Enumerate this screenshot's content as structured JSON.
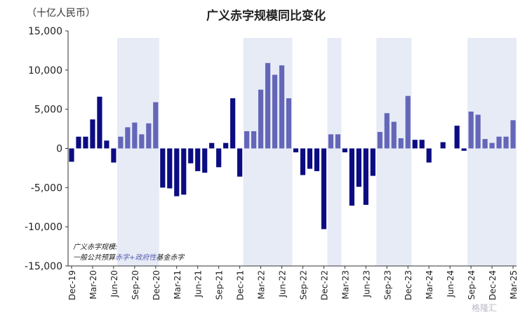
{
  "chart_data": {
    "type": "bar",
    "title": "广义赤字规模同比变化",
    "unit_label": "（十亿人民币）",
    "ylim": [
      -15000,
      15000
    ],
    "yticks": [
      15000,
      10000,
      5000,
      0,
      -5000,
      -10000,
      -15000
    ],
    "ytick_labels": [
      "15,000",
      "10,000",
      "5,000",
      "0",
      "-5,000",
      "-10,000",
      "-15,000"
    ],
    "categories": [
      "2019-12",
      "2020-01",
      "2020-02",
      "2020-03",
      "2020-04",
      "2020-05",
      "2020-06",
      "2020-07",
      "2020-08",
      "2020-09",
      "2020-10",
      "2020-11",
      "2020-12",
      "2021-01",
      "2021-02",
      "2021-03",
      "2021-04",
      "2021-05",
      "2021-06",
      "2021-07",
      "2021-08",
      "2021-09",
      "2021-10",
      "2021-11",
      "2021-12",
      "2022-01",
      "2022-02",
      "2022-03",
      "2022-04",
      "2022-05",
      "2022-06",
      "2022-07",
      "2022-08",
      "2022-09",
      "2022-10",
      "2022-11",
      "2022-12",
      "2023-01",
      "2023-02",
      "2023-03",
      "2023-04",
      "2023-05",
      "2023-06",
      "2023-07",
      "2023-08",
      "2023-09",
      "2023-10",
      "2023-11",
      "2023-12",
      "2024-01",
      "2024-02",
      "2024-03",
      "2024-04",
      "2024-05",
      "2024-06",
      "2024-07",
      "2024-08",
      "2024-09",
      "2024-10",
      "2024-11",
      "2024-12",
      "2025-01",
      "2025-02",
      "2025-03"
    ],
    "x_tick_labels": [
      "Dec-19",
      "Mar-20",
      "Jun-20",
      "Sep-20",
      "Dec-20",
      "Mar-21",
      "Jun-21",
      "Sep-21",
      "Dec-21",
      "Mar-22",
      "Jun-22",
      "Sep-22",
      "Dec-22",
      "Mar-23",
      "Jun-23",
      "Sep-23",
      "Dec-23",
      "Mar-24",
      "Jun-24",
      "Sep-24",
      "Dec-24",
      "Mar-25"
    ],
    "x_tick_every": 3,
    "values": [
      -1700,
      1500,
      1500,
      3700,
      6600,
      1000,
      -1800,
      1500,
      2700,
      3300,
      1800,
      3200,
      5900,
      -5000,
      -5100,
      -6100,
      -5900,
      -1900,
      -2900,
      -3100,
      700,
      -2400,
      700,
      6400,
      -3600,
      2200,
      2200,
      7500,
      10900,
      9400,
      10600,
      6400,
      -500,
      -3400,
      -2600,
      -2900,
      -10300,
      1800,
      1800,
      -500,
      -7300,
      -4900,
      -7200,
      -3500,
      2100,
      4500,
      3400,
      1300,
      6700,
      1100,
      1100,
      -1800,
      0,
      800,
      0,
      2900,
      -300,
      4700,
      4300,
      1200,
      700,
      1500,
      1500,
      3600
    ],
    "bar_colors": {
      "dark": "#0c0c82",
      "light": "#6466b8",
      "shade": "#e6ebf6"
    },
    "light_ranges": [
      [
        7,
        12
      ],
      [
        25,
        31
      ],
      [
        37,
        38
      ],
      [
        44,
        48
      ],
      [
        57,
        63
      ]
    ],
    "shaded_ranges": [
      [
        7,
        12
      ],
      [
        25,
        31
      ],
      [
        37,
        38
      ],
      [
        44,
        48
      ],
      [
        57,
        63
      ]
    ],
    "grid": false,
    "legend": "none"
  },
  "note": {
    "line1": "广义赤字规模:",
    "line2_prefix": "一般公共预算",
    "line2_highlight": "赤字+政府性",
    "line2_suffix": "基金赤字"
  },
  "watermark": "格隆汇"
}
